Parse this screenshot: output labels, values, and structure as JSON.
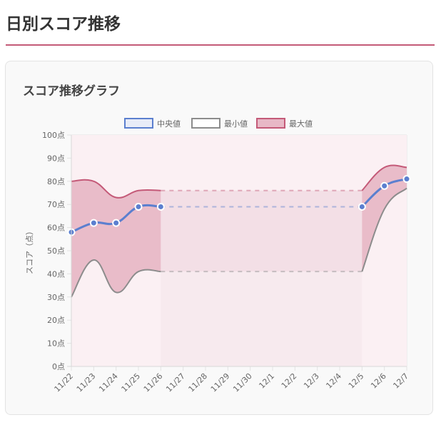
{
  "page": {
    "title": "日別スコア推移",
    "accent_color": "#c45a78"
  },
  "card": {
    "title": "スコア推移グラフ"
  },
  "chart_data": {
    "type": "line",
    "title": "スコア推移グラフ",
    "xlabel": "",
    "ylabel": "スコア（点）",
    "ylim": [
      0,
      100
    ],
    "y_ticks": [
      "0点",
      "10点",
      "20点",
      "30点",
      "40点",
      "50点",
      "60点",
      "70点",
      "80点",
      "90点",
      "100点"
    ],
    "categories": [
      "11/22",
      "11/23",
      "11/24",
      "11/25",
      "11/26",
      "11/27",
      "11/28",
      "11/29",
      "11/30",
      "12/1",
      "12/2",
      "12/3",
      "12/4",
      "12/5",
      "12/6",
      "12/7"
    ],
    "legend_position": "top",
    "grid": true,
    "series": [
      {
        "name": "中央値",
        "color": "#5b7fcf",
        "fill": "#e8ecf8",
        "values": [
          58,
          62,
          62,
          69,
          69,
          null,
          null,
          null,
          null,
          null,
          null,
          null,
          null,
          69,
          78,
          81
        ]
      },
      {
        "name": "最小値",
        "color": "#8c8c8c",
        "fill": "#ffffff",
        "values": [
          30,
          46,
          32,
          41,
          41,
          null,
          null,
          null,
          null,
          null,
          null,
          null,
          null,
          41,
          68,
          77
        ]
      },
      {
        "name": "最大値",
        "color": "#c45a78",
        "fill": "#e8b8c6",
        "values": [
          80,
          80,
          73,
          76,
          76,
          null,
          null,
          null,
          null,
          null,
          null,
          null,
          null,
          76,
          86,
          86
        ]
      }
    ],
    "gap_style": "dashed lines spanning 11/26 to 12/5"
  }
}
